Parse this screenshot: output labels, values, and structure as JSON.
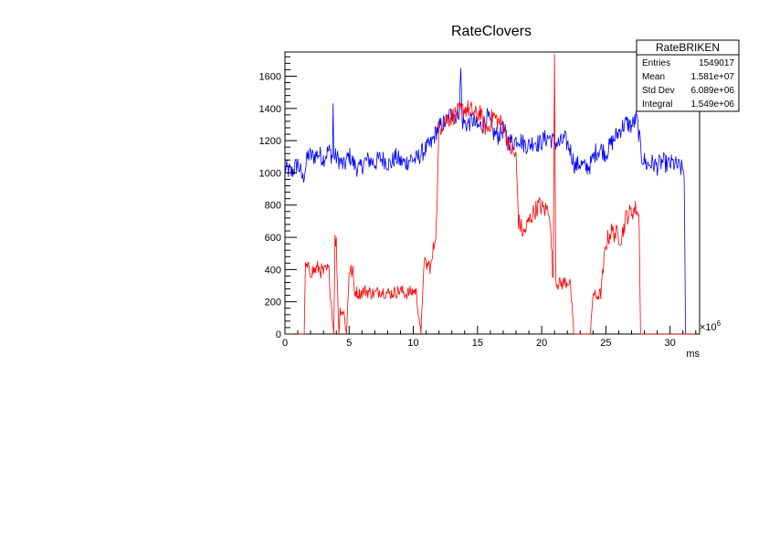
{
  "chart_data": {
    "type": "line",
    "title": "RateClovers",
    "xlabel": "ms",
    "ylabel": "",
    "x_multiplier_label": "×10",
    "x_multiplier_exp": "6",
    "xlim": [
      0,
      32.3
    ],
    "ylim": [
      0,
      1750
    ],
    "x_ticks": [
      0,
      5,
      10,
      15,
      20,
      25,
      30
    ],
    "y_ticks": [
      0,
      200,
      400,
      600,
      800,
      1000,
      1200,
      1400,
      1600
    ],
    "grid": false,
    "series": [
      {
        "color": "#0000ff",
        "x": [
          0,
          0.5,
          1.0,
          1.4,
          1.8,
          2.2,
          2.6,
          3.0,
          3.4,
          3.7,
          3.75,
          3.8,
          4.2,
          4.6,
          5.0,
          5.4,
          5.8,
          6.2,
          6.6,
          7.0,
          7.4,
          7.8,
          8.2,
          8.6,
          9.0,
          9.4,
          9.8,
          10.2,
          10.6,
          11.0,
          11.4,
          11.8,
          12.2,
          12.6,
          13.0,
          13.4,
          13.6,
          13.7,
          13.8,
          14.2,
          14.6,
          15.0,
          15.4,
          15.8,
          16.2,
          16.6,
          17.0,
          17.4,
          17.8,
          18.2,
          18.6,
          19.0,
          19.4,
          19.8,
          20.2,
          20.6,
          21.0,
          21.4,
          21.8,
          22.2,
          22.6,
          23.0,
          23.4,
          23.8,
          24.2,
          24.6,
          25.0,
          25.4,
          25.8,
          26.2,
          26.6,
          27.0,
          27.4,
          27.8,
          28.2,
          28.6,
          29.0,
          29.4,
          29.8,
          30.2,
          30.6,
          31.0,
          31.1,
          31.2
        ],
        "y": [
          1030,
          1000,
          1060,
          960,
          1110,
          1100,
          1120,
          1090,
          1140,
          1100,
          1430,
          1110,
          1080,
          1040,
          1110,
          1050,
          1020,
          1070,
          1080,
          1060,
          1090,
          1080,
          1050,
          1100,
          1070,
          1060,
          1090,
          1080,
          1120,
          1150,
          1180,
          1260,
          1300,
          1320,
          1380,
          1350,
          1400,
          1650,
          1320,
          1300,
          1330,
          1280,
          1300,
          1350,
          1250,
          1230,
          1270,
          1200,
          1190,
          1220,
          1180,
          1170,
          1200,
          1180,
          1210,
          1220,
          1190,
          1180,
          1210,
          1150,
          1040,
          1060,
          1030,
          1050,
          1130,
          1150,
          1120,
          1180,
          1230,
          1280,
          1310,
          1290,
          1340,
          1100,
          1050,
          1060,
          1040,
          1070,
          1050,
          1060,
          1040,
          1020,
          1010,
          0
        ]
      },
      {
        "color": "#ff0000",
        "x": [
          0,
          1.5,
          1.6,
          1.8,
          2.2,
          2.6,
          3.0,
          3.4,
          3.8,
          3.9,
          4.0,
          4.2,
          4.3,
          4.6,
          4.8,
          5.0,
          5.3,
          5.4,
          5.6,
          5.8,
          6.2,
          6.6,
          7.0,
          7.4,
          7.8,
          8.2,
          8.6,
          9.0,
          9.4,
          9.8,
          10.2,
          10.6,
          10.8,
          11.0,
          11.4,
          11.8,
          12.0,
          12.2,
          12.6,
          13.0,
          13.4,
          13.8,
          14.2,
          14.6,
          15.0,
          15.2,
          15.4,
          15.8,
          16.2,
          16.6,
          17.0,
          17.4,
          17.8,
          18.0,
          18.2,
          18.6,
          19.0,
          19.4,
          19.8,
          20.2,
          20.6,
          20.9,
          21.0,
          21.1,
          21.2,
          21.4,
          21.8,
          22.2,
          22.5,
          22.6,
          23.0,
          23.4,
          23.8,
          24.0,
          24.2,
          24.6,
          24.8,
          25.0,
          25.4,
          25.8,
          26.2,
          26.6,
          27.0,
          27.4,
          27.6,
          27.7,
          28.2,
          29.0,
          30.0,
          31.0,
          32.0
        ],
        "y": [
          0,
          0,
          420,
          400,
          390,
          410,
          380,
          400,
          0,
          580,
          560,
          0,
          150,
          130,
          0,
          400,
          380,
          270,
          260,
          250,
          270,
          260,
          250,
          270,
          260,
          250,
          260,
          270,
          250,
          260,
          270,
          0,
          420,
          430,
          420,
          680,
          1270,
          1300,
          1330,
          1350,
          1370,
          1390,
          1400,
          1380,
          1350,
          1390,
          1300,
          1270,
          1360,
          1320,
          1300,
          1180,
          1120,
          1100,
          700,
          620,
          700,
          760,
          800,
          770,
          780,
          320,
          1750,
          340,
          320,
          310,
          320,
          330,
          0,
          0,
          0,
          0,
          0,
          260,
          230,
          250,
          400,
          560,
          640,
          620,
          600,
          730,
          760,
          780,
          700,
          0,
          0,
          0,
          0,
          0,
          0
        ]
      }
    ],
    "stats": {
      "title": "RateBRIKEN",
      "rows": [
        {
          "label": "Entries",
          "value": "1549017"
        },
        {
          "label": "Mean",
          "value": "1.581e+07"
        },
        {
          "label": "Std Dev",
          "value": "6.089e+06"
        },
        {
          "label": "Integral",
          "value": "1.549e+06"
        }
      ]
    }
  }
}
